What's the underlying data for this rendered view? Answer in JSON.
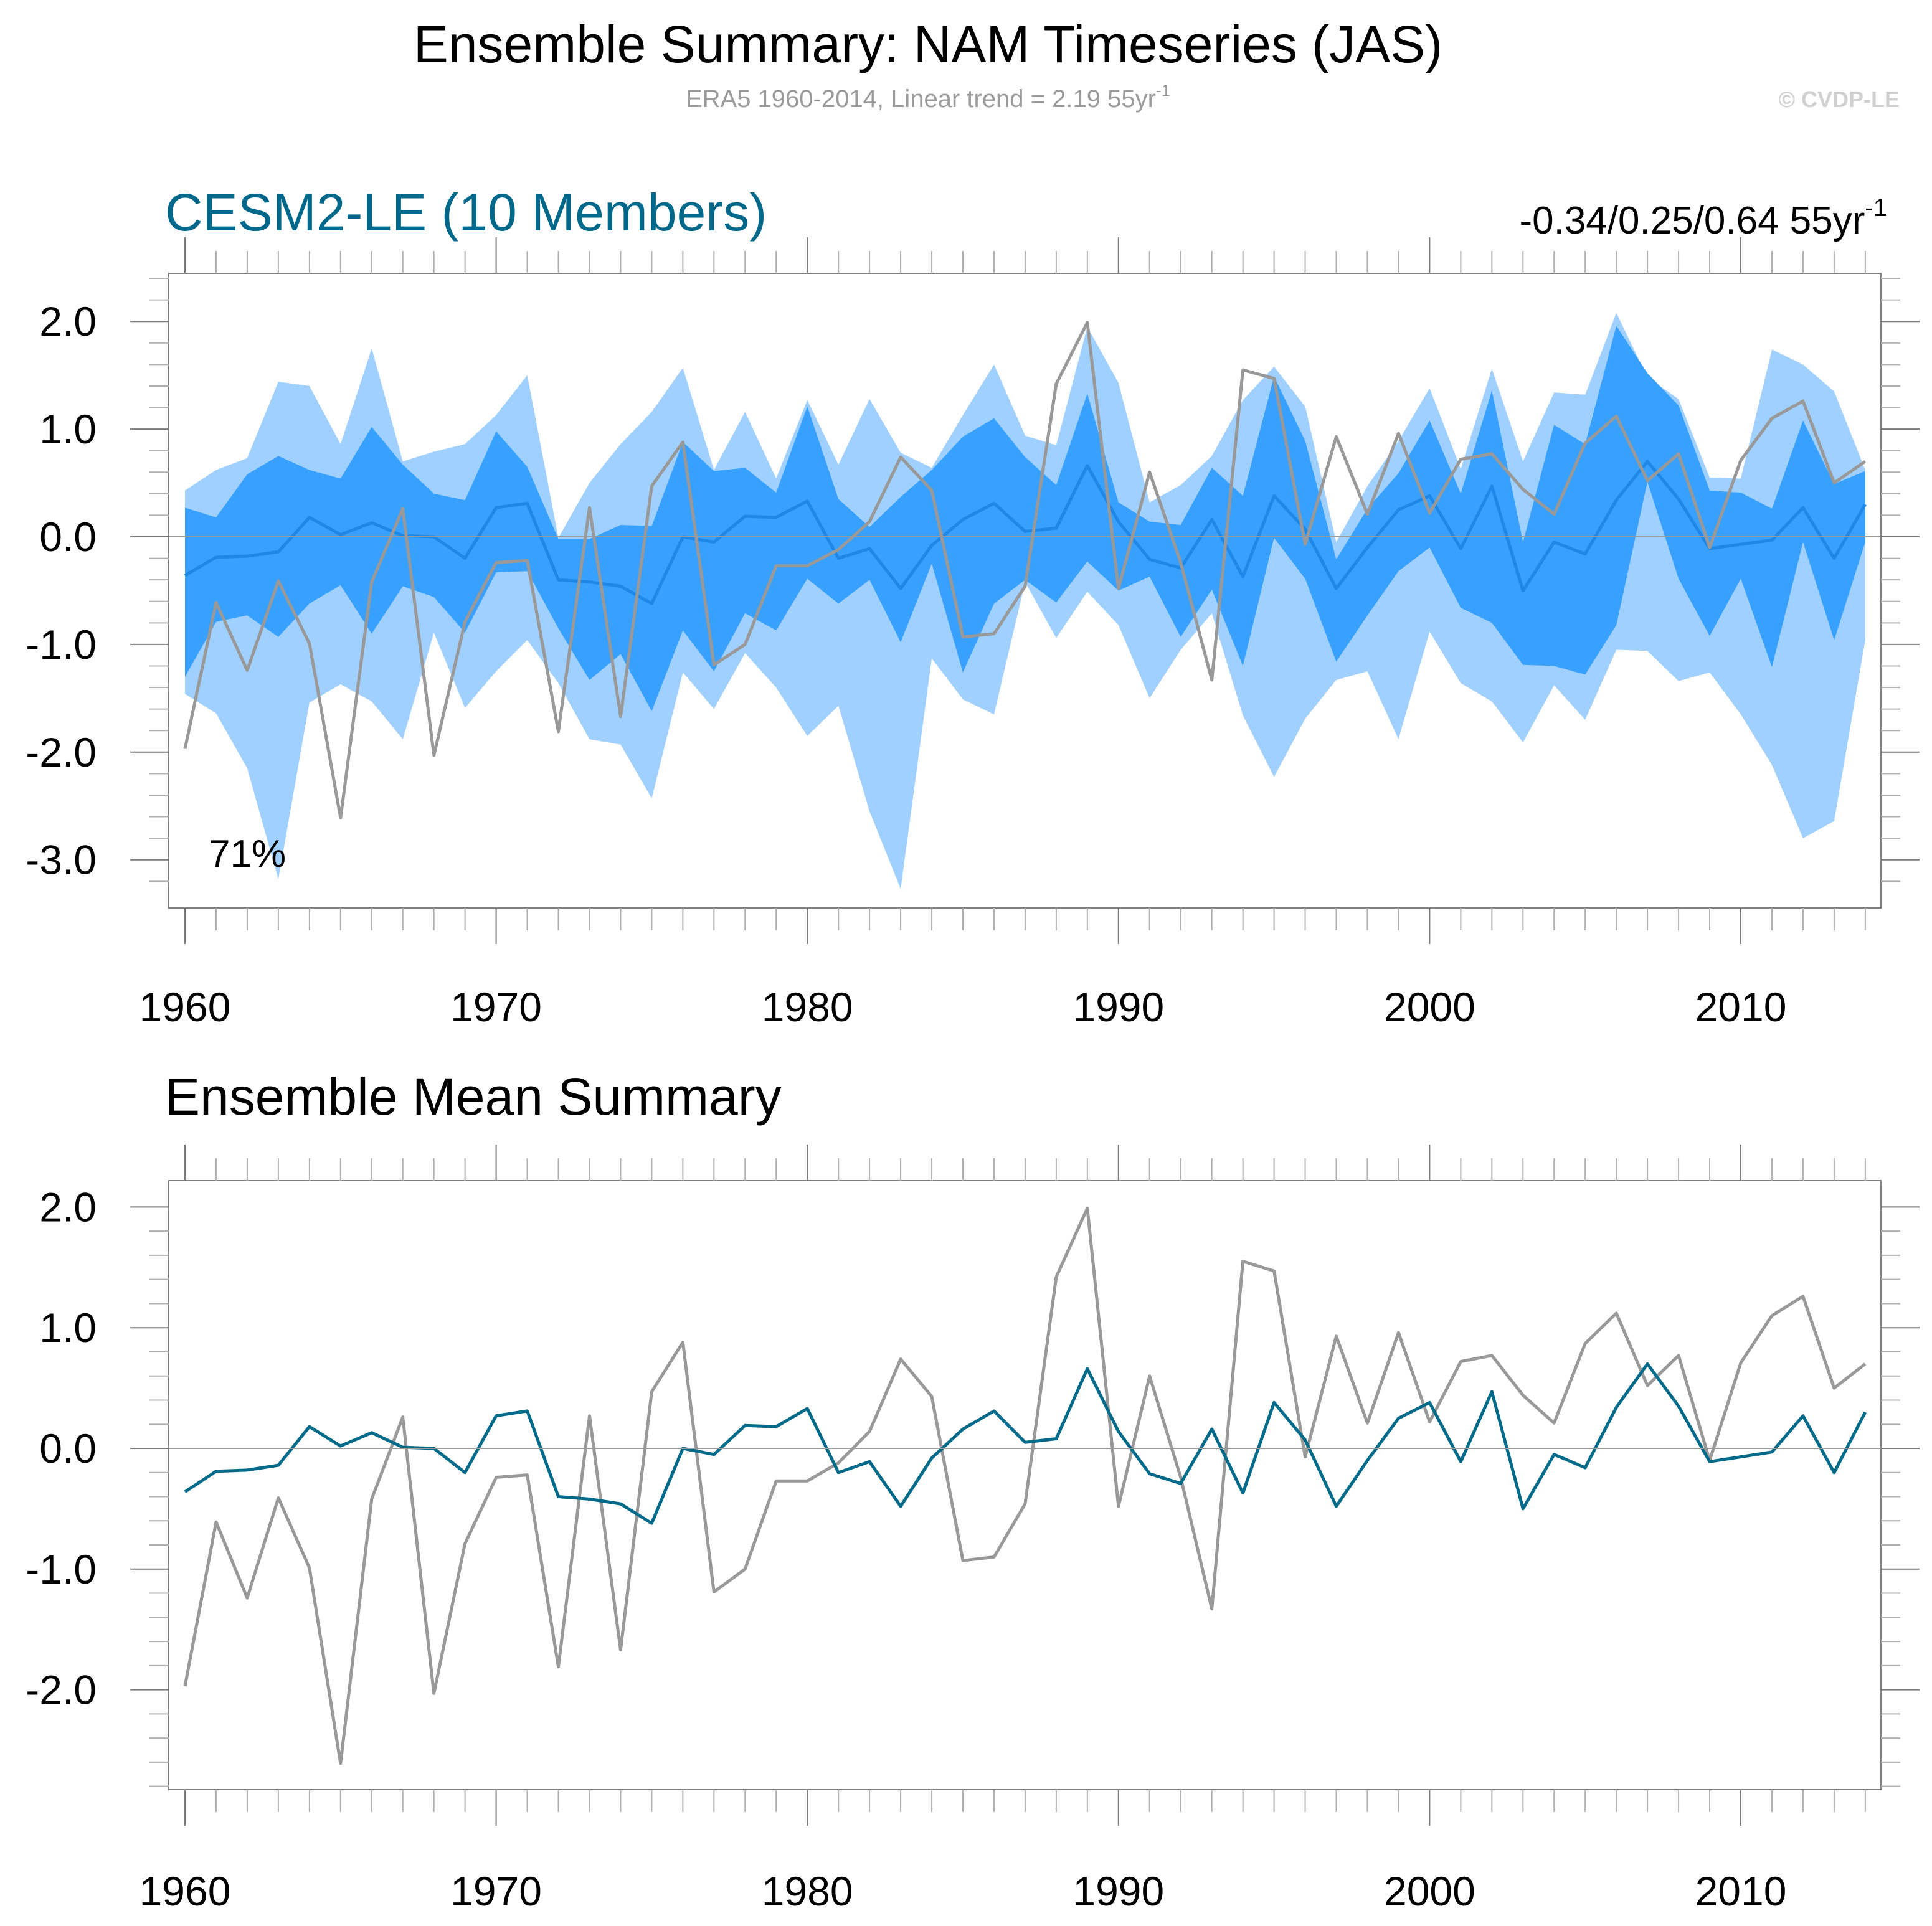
{
  "header": {
    "title": "Ensemble Summary: NAM Timeseries (JAS)",
    "subtitle": "ERA5 1960-2014, Linear trend = 2.19 55yr",
    "subtitle_sup": "-1",
    "copyright": "© CVDP-LE"
  },
  "colors": {
    "model_title": "#00688b",
    "light_band": "#a0d0ff",
    "dark_band": "#38a0ff",
    "model_mean_top": "#1e88e8",
    "model_mean_bottom": "#006a8a",
    "observations": "#999999"
  },
  "chart_data": [
    {
      "type": "area",
      "title": "CESM2-LE (10 Members)",
      "trend_text": "-0.34/0.25/0.64 55yr",
      "trend_sup": "-1",
      "annotation": "71%",
      "xlabel": "",
      "ylabel": "",
      "xlim": [
        1960,
        2014
      ],
      "ylim": [
        -3.3,
        2.5
      ],
      "x_ticks": [
        1960,
        1970,
        1980,
        1990,
        2000,
        2010
      ],
      "x_tick_labels": [
        "1960",
        "1970",
        "1980",
        "1990",
        "2000",
        "2010"
      ],
      "y_ticks": [
        2.0,
        1.0,
        0.0,
        -1.0,
        -2.0,
        -3.0
      ],
      "y_tick_labels": [
        "2.0",
        "1.0",
        "0.0",
        "-1.0",
        "-2.0",
        "-3.0"
      ],
      "grid": false,
      "zero_line": true,
      "x": [
        1960,
        1961,
        1962,
        1963,
        1964,
        1965,
        1966,
        1967,
        1968,
        1969,
        1970,
        1971,
        1972,
        1973,
        1974,
        1975,
        1976,
        1977,
        1978,
        1979,
        1980,
        1981,
        1982,
        1983,
        1984,
        1985,
        1986,
        1987,
        1988,
        1989,
        1990,
        1991,
        1992,
        1993,
        1994,
        1995,
        1996,
        1997,
        1998,
        1999,
        2000,
        2001,
        2002,
        2003,
        2004,
        2005,
        2006,
        2007,
        2008,
        2009,
        2010,
        2011,
        2012,
        2013,
        2014
      ],
      "series": [
        {
          "name": "Ensemble max",
          "role": "light_upper",
          "values": [
            0.43,
            0.62,
            0.73,
            1.44,
            1.4,
            0.86,
            1.75,
            0.7,
            0.79,
            0.86,
            1.13,
            1.5,
            -0.01,
            0.5,
            0.86,
            1.16,
            1.57,
            0.62,
            1.16,
            0.54,
            1.27,
            0.67,
            1.28,
            0.78,
            0.64,
            1.13,
            1.6,
            0.94,
            0.85,
            1.95,
            1.43,
            0.32,
            0.48,
            0.75,
            1.27,
            1.58,
            1.21,
            -0.05,
            0.47,
            0.89,
            1.38,
            0.63,
            1.56,
            0.7,
            1.34,
            1.32,
            2.08,
            1.48,
            1.28,
            0.55,
            0.54,
            1.74,
            1.6,
            1.35,
            0.62
          ]
        },
        {
          "name": "Ensemble min",
          "role": "light_lower",
          "values": [
            -1.46,
            -1.64,
            -2.15,
            -3.18,
            -1.54,
            -1.37,
            -1.53,
            -1.88,
            -0.89,
            -1.59,
            -1.25,
            -0.96,
            -1.36,
            -1.88,
            -1.93,
            -2.43,
            -1.26,
            -1.6,
            -1.08,
            -1.4,
            -1.85,
            -1.57,
            -2.55,
            -3.27,
            -1.13,
            -1.51,
            -1.65,
            -0.42,
            -0.94,
            -0.51,
            -0.82,
            -1.5,
            -1.05,
            -0.71,
            -1.66,
            -2.23,
            -1.69,
            -1.33,
            -1.25,
            -1.88,
            -0.88,
            -1.36,
            -1.53,
            -1.91,
            -1.38,
            -1.7,
            -1.05,
            -1.06,
            -1.34,
            -1.26,
            -1.65,
            -2.12,
            -2.8,
            -2.64,
            -0.96
          ]
        },
        {
          "name": "Ensemble upper percentile",
          "role": "dark_upper",
          "values": [
            0.27,
            0.18,
            0.58,
            0.75,
            0.62,
            0.54,
            1.02,
            0.67,
            0.4,
            0.34,
            0.98,
            0.65,
            -0.02,
            -0.02,
            0.11,
            0.1,
            0.88,
            0.61,
            0.64,
            0.41,
            1.21,
            0.35,
            0.09,
            0.37,
            0.62,
            0.93,
            1.1,
            0.74,
            0.48,
            1.33,
            0.32,
            0.14,
            0.11,
            0.64,
            0.38,
            1.49,
            0.89,
            -0.21,
            0.26,
            0.59,
            1.08,
            0.4,
            1.36,
            -0.05,
            1.04,
            0.86,
            1.96,
            1.52,
            1.22,
            0.43,
            0.41,
            0.26,
            1.08,
            0.49,
            0.61
          ]
        },
        {
          "name": "Ensemble lower percentile",
          "role": "dark_lower",
          "values": [
            -1.3,
            -0.79,
            -0.73,
            -0.93,
            -0.62,
            -0.45,
            -0.9,
            -0.46,
            -0.56,
            -0.89,
            -0.33,
            -0.32,
            -0.85,
            -1.33,
            -1.09,
            -1.62,
            -0.87,
            -1.25,
            -0.71,
            -0.87,
            -0.39,
            -0.62,
            -0.4,
            -0.98,
            -0.25,
            -1.26,
            -0.62,
            -0.4,
            -0.61,
            -0.23,
            -0.5,
            -0.37,
            -0.93,
            -0.49,
            -1.2,
            -0.01,
            -0.39,
            -1.16,
            -0.73,
            -0.32,
            -0.1,
            -0.66,
            -0.8,
            -1.19,
            -1.2,
            -1.28,
            -0.82,
            0.51,
            -0.39,
            -0.92,
            -0.39,
            -1.21,
            -0.05,
            -0.96,
            -0.05
          ]
        },
        {
          "name": "CESM2-LE ensemble mean",
          "role": "mean",
          "values": [
            -0.36,
            -0.19,
            -0.18,
            -0.14,
            0.18,
            0.02,
            0.13,
            0.01,
            0.0,
            -0.2,
            0.27,
            0.31,
            -0.4,
            -0.42,
            -0.46,
            -0.62,
            0.0,
            -0.05,
            0.19,
            0.18,
            0.33,
            -0.2,
            -0.11,
            -0.48,
            -0.08,
            0.16,
            0.31,
            0.05,
            0.08,
            0.66,
            0.14,
            -0.21,
            -0.29,
            0.16,
            -0.37,
            0.38,
            0.07,
            -0.48,
            -0.1,
            0.25,
            0.38,
            -0.11,
            0.47,
            -0.5,
            -0.05,
            -0.16,
            0.34,
            0.7,
            0.35,
            -0.11,
            -0.07,
            -0.03,
            0.27,
            -0.2,
            0.3
          ]
        },
        {
          "name": "ERA5",
          "role": "obs",
          "values": [
            -1.97,
            -0.61,
            -1.24,
            -0.41,
            -0.99,
            -2.61,
            -0.42,
            0.26,
            -2.03,
            -0.79,
            -0.24,
            -0.22,
            -1.81,
            0.27,
            -1.67,
            0.47,
            0.88,
            -1.19,
            -1.0,
            -0.27,
            -0.27,
            -0.12,
            0.14,
            0.74,
            0.43,
            -0.93,
            -0.9,
            -0.46,
            1.42,
            1.99,
            -0.48,
            0.6,
            -0.24,
            -1.33,
            1.55,
            1.47,
            -0.07,
            0.93,
            0.21,
            0.96,
            0.22,
            0.72,
            0.77,
            0.44,
            0.21,
            0.87,
            1.12,
            0.52,
            0.77,
            -0.1,
            0.71,
            1.1,
            1.26,
            0.5,
            0.7
          ]
        }
      ]
    },
    {
      "type": "line",
      "title": "Ensemble Mean Summary",
      "xlabel": "",
      "ylabel": "",
      "xlim": [
        1960,
        2014
      ],
      "ylim": [
        -2.8,
        2.2
      ],
      "x_ticks": [
        1960,
        1970,
        1980,
        1990,
        2000,
        2010
      ],
      "x_tick_labels": [
        "1960",
        "1970",
        "1980",
        "1990",
        "2000",
        "2010"
      ],
      "y_ticks": [
        2.0,
        1.0,
        0.0,
        -1.0,
        -2.0
      ],
      "y_tick_labels": [
        "2.0",
        "1.0",
        "0.0",
        "-1.0",
        "-2.0"
      ],
      "grid": false,
      "zero_line": true,
      "series_refs": [
        "CESM2-LE ensemble mean",
        "ERA5"
      ]
    }
  ]
}
